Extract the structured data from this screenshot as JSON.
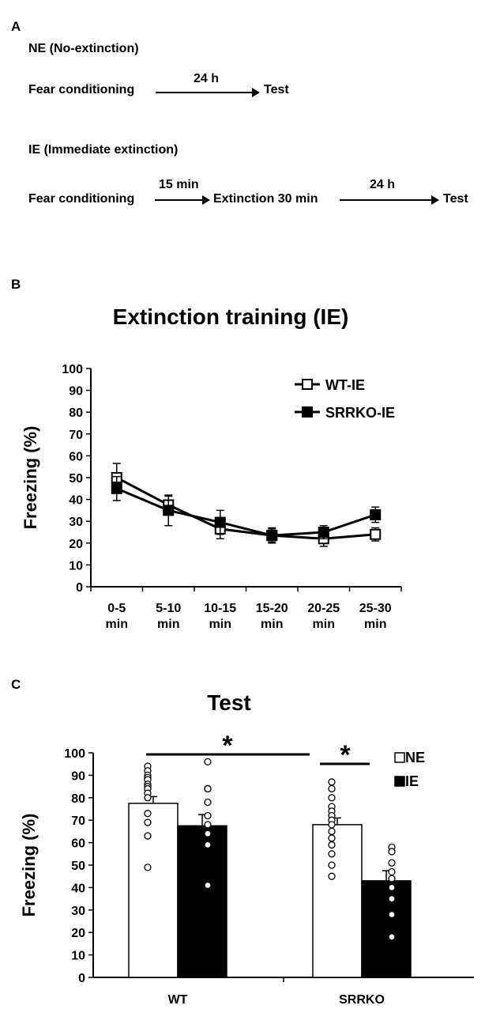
{
  "panel_a": {
    "letter": "A",
    "ne_title": "NE (No-extinction)",
    "ne_step1": "Fear conditioning",
    "ne_delay": "24 h",
    "ne_step2": "Test",
    "ie_title": "IE (Immediate extinction)",
    "ie_step1": "Fear conditioning",
    "ie_delay1": "15 min",
    "ie_step2": "Extinction 30 min",
    "ie_delay2": "24 h",
    "ie_step3": "Test"
  },
  "panel_b": {
    "letter": "B"
  },
  "panel_c": {
    "letter": "C"
  },
  "chart_data": [
    {
      "type": "line",
      "title": "Extinction training (IE)",
      "ylabel": "Freezing (%)",
      "xlabel": "",
      "ylim": [
        0,
        100
      ],
      "yticks": [
        "0",
        "10",
        "20",
        "30",
        "40",
        "50",
        "60",
        "70",
        "80",
        "90",
        "100"
      ],
      "categories": [
        [
          "0-5",
          "min"
        ],
        [
          "5-10",
          "min"
        ],
        [
          "10-15",
          "min"
        ],
        [
          "15-20",
          "min"
        ],
        [
          "20-25",
          "min"
        ],
        [
          "25-30",
          "min"
        ]
      ],
      "legend_position": "top-right",
      "series": [
        {
          "name": "WT-IE",
          "marker": "open-square",
          "values": [
            50,
            37.5,
            26.5,
            23.5,
            22,
            24
          ],
          "errors": [
            6.5,
            4,
            4.5,
            3,
            3.5,
            3
          ]
        },
        {
          "name": "SRRKO-IE",
          "marker": "filled-square",
          "values": [
            45,
            35,
            29.5,
            23.5,
            25,
            33
          ],
          "errors": [
            5.5,
            7,
            5.5,
            3.5,
            3,
            3.5
          ]
        }
      ]
    },
    {
      "type": "bar",
      "title": "Test",
      "ylabel": "Freezing (%)",
      "ylim": [
        0,
        100
      ],
      "yticks": [
        "0",
        "10",
        "20",
        "30",
        "40",
        "50",
        "60",
        "70",
        "80",
        "90",
        "100"
      ],
      "categories": [
        "WT",
        "SRRKO"
      ],
      "legend_position": "top-right",
      "series": [
        {
          "name": "NE",
          "color": "#ffffff",
          "values": [
            77.5,
            68
          ],
          "errors": [
            3,
            3
          ],
          "points": [
            [
              94,
              92,
              90,
              89,
              88,
              86,
              85,
              84,
              82,
              80,
              73,
              69,
              63,
              49
            ],
            [
              87,
              84,
              80,
              76,
              74,
              72,
              70,
              68,
              65,
              62,
              59,
              55,
              50,
              45
            ]
          ]
        },
        {
          "name": "IE",
          "color": "#000000",
          "values": [
            67.5,
            43
          ],
          "errors": [
            5,
            4.5
          ],
          "points": [
            [
              96,
              84,
              84,
              78,
              72,
              68,
              64,
              59,
              41
            ],
            [
              58,
              56,
              51,
              47,
              44,
              40,
              35,
              28,
              18
            ]
          ]
        }
      ],
      "significance": [
        {
          "between": "WT vs SRRKO",
          "label": "*"
        },
        {
          "between": "SRRKO NE vs IE",
          "label": "*"
        }
      ]
    }
  ]
}
